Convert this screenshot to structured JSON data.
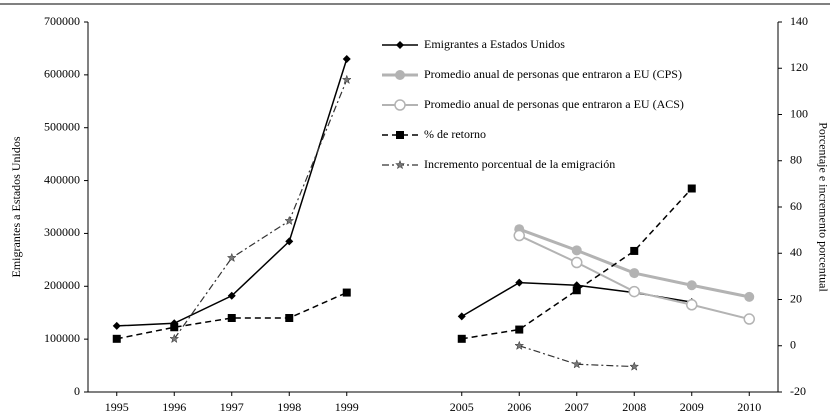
{
  "chart_data": {
    "type": "line",
    "ylabel": "Emigrantes a Estados Unidos",
    "y2label": "Porcentaje e incremento porcentual",
    "categories": [
      "1995",
      "1996",
      "1997",
      "1998",
      "1999",
      null,
      "2005",
      "2006",
      "2007",
      "2008",
      "2009",
      "2010"
    ],
    "ylim": [
      0,
      700000
    ],
    "yticks": [
      0,
      100000,
      200000,
      300000,
      400000,
      500000,
      600000,
      700000
    ],
    "y2lim": [
      -20,
      140
    ],
    "y2ticks": [
      -20,
      0,
      20,
      40,
      60,
      80,
      100,
      120,
      140
    ],
    "legend": "top-center",
    "series": [
      {
        "name": "Emigrantes a Estados Unidos",
        "color": "#000000",
        "dash": "solid",
        "marker": "diamond",
        "width": 1.5,
        "values": [
          125000,
          130000,
          182000,
          285000,
          630000,
          null,
          143000,
          207000,
          202000,
          188000,
          170000,
          null
        ]
      },
      {
        "name": "Promedio anual de personas que entraron a EU (CPS)",
        "color": "#b3b3b3",
        "dash": "solid",
        "marker": "circle",
        "width": 3,
        "values": [
          null,
          null,
          null,
          null,
          null,
          null,
          null,
          308000,
          268000,
          225000,
          202000,
          180000
        ]
      },
      {
        "name": "Promedio anual de personas que entraron a EU (ACS)",
        "color": "#b3b3b3",
        "dash": "solid",
        "marker": "open-circle",
        "width": 2,
        "values": [
          null,
          null,
          null,
          null,
          null,
          null,
          null,
          296000,
          245000,
          190000,
          165000,
          138000
        ]
      },
      {
        "name": "% de retorno",
        "color": "#000000",
        "dash": "dashed",
        "marker": "square",
        "width": 1.5,
        "axis": "y2",
        "values": [
          3,
          8,
          12,
          12,
          23,
          null,
          3,
          7,
          24,
          41,
          68,
          null
        ]
      },
      {
        "name": "Incremento porcentual de la emigración",
        "color": "#333333",
        "dash": "dash-dot",
        "marker": "star",
        "width": 1.2,
        "axis": "y2",
        "values": [
          null,
          3,
          38,
          54,
          115,
          null,
          null,
          0,
          -8,
          -9,
          null,
          null
        ]
      }
    ]
  }
}
